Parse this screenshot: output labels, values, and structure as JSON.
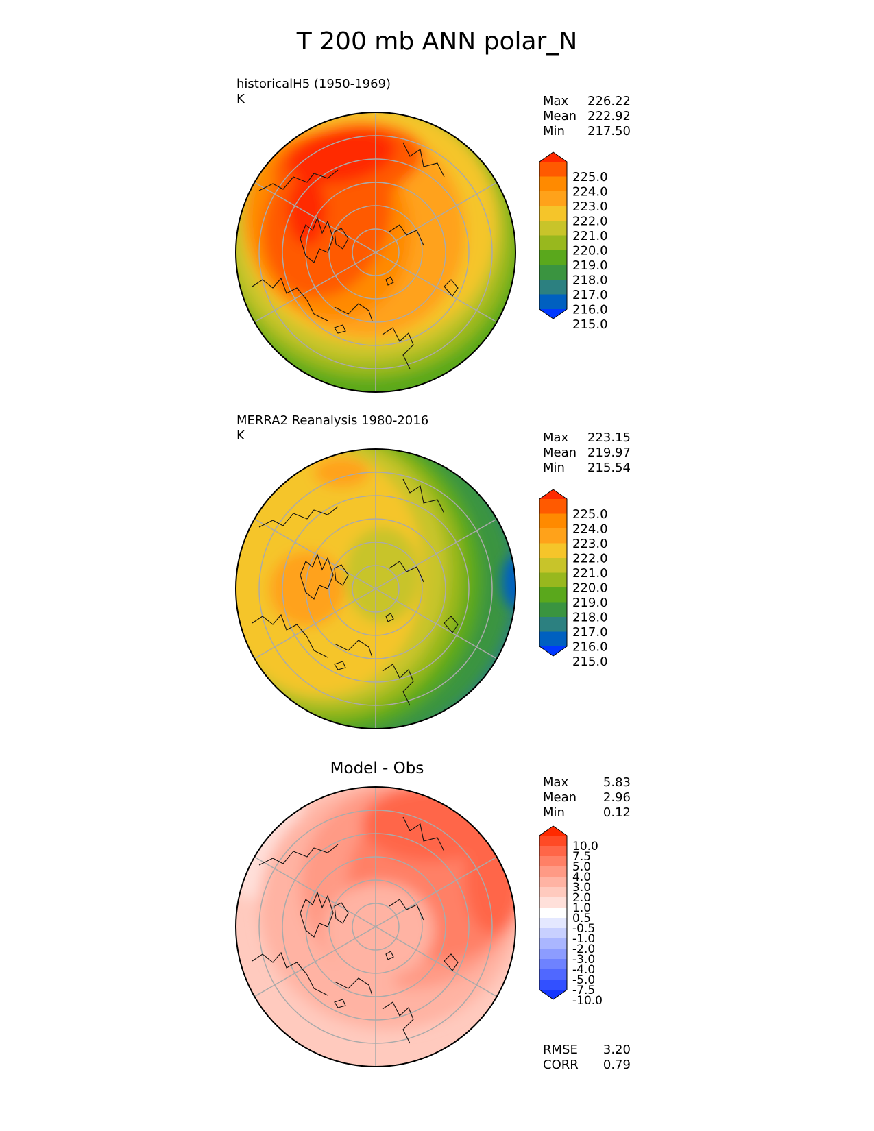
{
  "title": "T 200 mb ANN polar_N",
  "panels": [
    {
      "id": "test",
      "title": "historicalH5 (1950-1969)",
      "units": "K",
      "stats": [
        {
          "label": "Max",
          "value": "226.22"
        },
        {
          "label": "Mean",
          "value": "222.92"
        },
        {
          "label": "Min",
          "value": "217.50"
        }
      ]
    },
    {
      "id": "ref",
      "title": "MERRA2 Reanalysis 1980-2016",
      "units": "K",
      "stats": [
        {
          "label": "Max",
          "value": "223.15"
        },
        {
          "label": "Mean",
          "value": "219.97"
        },
        {
          "label": "Min",
          "value": "215.54"
        }
      ]
    },
    {
      "id": "diff",
      "title": "Model - Obs",
      "stats": [
        {
          "label": "Max",
          "value": "5.83"
        },
        {
          "label": "Mean",
          "value": "2.96"
        },
        {
          "label": "Min",
          "value": "0.12"
        }
      ],
      "metrics": [
        {
          "label": "RMSE",
          "value": "3.20"
        },
        {
          "label": "CORR",
          "value": "0.79"
        }
      ]
    }
  ],
  "colorbar_abs": {
    "ticks": [
      "225.0",
      "224.0",
      "223.0",
      "222.0",
      "221.0",
      "220.0",
      "219.0",
      "218.0",
      "217.0",
      "216.0",
      "215.0"
    ],
    "colors_top_to_bottom": [
      "#ff2a00",
      "#ff5a00",
      "#ff8a00",
      "#ffa21a",
      "#f5c52a",
      "#c8c42a",
      "#98b81e",
      "#5aa81c",
      "#3a9440",
      "#2c8080",
      "#0060c0",
      "#0038ff"
    ]
  },
  "colorbar_diff": {
    "ticks": [
      "10.0",
      "7.5",
      "5.0",
      "4.0",
      "3.0",
      "2.0",
      "1.0",
      "0.5",
      "-0.5",
      "-1.0",
      "-2.0",
      "-3.0",
      "-4.0",
      "-5.0",
      "-7.5",
      "-10.0"
    ],
    "colors_top_to_bottom": [
      "#ff2a00",
      "#ff4a25",
      "#ff6648",
      "#ff8066",
      "#ff9a85",
      "#ffb3a3",
      "#ffcabe",
      "#ffe0da",
      "#ffffff",
      "#e4e8ff",
      "#c8d0ff",
      "#aab6ff",
      "#8c9cff",
      "#6e82ff",
      "#5068ff",
      "#3250ff",
      "#1436ff"
    ]
  },
  "chart_data": [
    {
      "type": "heatmap",
      "title": "historicalH5 (1950-1969)",
      "projection": "polar_N",
      "variable": "T 200 mb",
      "units": "K",
      "max": 226.22,
      "mean": 222.92,
      "min": 217.5,
      "levels": [
        215,
        216,
        217,
        218,
        219,
        220,
        221,
        222,
        223,
        224,
        225
      ]
    },
    {
      "type": "heatmap",
      "title": "MERRA2 Reanalysis 1980-2016",
      "projection": "polar_N",
      "variable": "T 200 mb",
      "units": "K",
      "max": 223.15,
      "mean": 219.97,
      "min": 215.54,
      "levels": [
        215,
        216,
        217,
        218,
        219,
        220,
        221,
        222,
        223,
        224,
        225
      ]
    },
    {
      "type": "heatmap",
      "title": "Model - Obs",
      "projection": "polar_N",
      "max": 5.83,
      "mean": 2.96,
      "min": 0.12,
      "rmse": 3.2,
      "corr": 0.79,
      "levels": [
        -10,
        -7.5,
        -5,
        -4,
        -3,
        -2,
        -1,
        -0.5,
        0.5,
        1,
        2,
        3,
        4,
        5,
        7.5,
        10
      ]
    }
  ]
}
